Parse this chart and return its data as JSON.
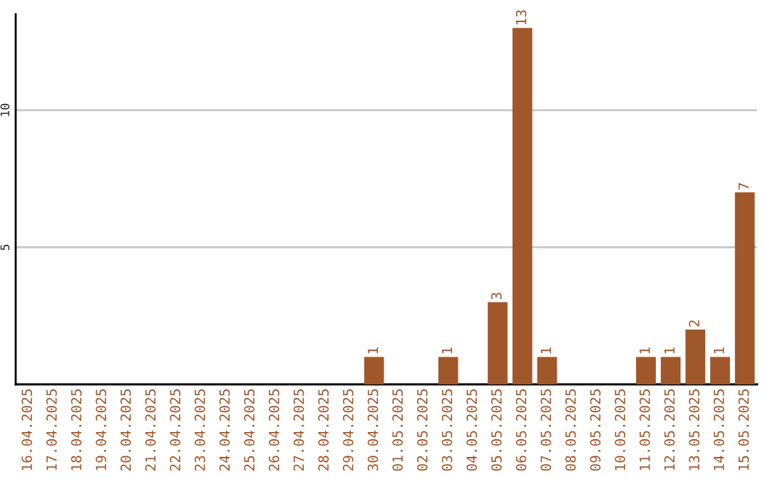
{
  "chart_data": {
    "type": "bar",
    "categories": [
      "16.04.2025",
      "17.04.2025",
      "18.04.2025",
      "19.04.2025",
      "20.04.2025",
      "21.04.2025",
      "22.04.2025",
      "23.04.2025",
      "24.04.2025",
      "25.04.2025",
      "26.04.2025",
      "27.04.2025",
      "28.04.2025",
      "29.04.2025",
      "30.04.2025",
      "01.05.2025",
      "02.05.2025",
      "03.05.2025",
      "04.05.2025",
      "05.05.2025",
      "06.05.2025",
      "07.05.2025",
      "08.05.2025",
      "09.05.2025",
      "10.05.2025",
      "11.05.2025",
      "12.05.2025",
      "13.05.2025",
      "14.05.2025",
      "15.05.2025"
    ],
    "values": [
      0,
      0,
      0,
      0,
      0,
      0,
      0,
      0,
      0,
      0,
      0,
      0,
      0,
      0,
      1,
      0,
      0,
      1,
      0,
      3,
      13,
      1,
      0,
      0,
      0,
      1,
      1,
      2,
      1,
      7
    ],
    "value_labels": [
      null,
      null,
      null,
      null,
      null,
      null,
      null,
      null,
      null,
      null,
      null,
      null,
      null,
      null,
      "1",
      null,
      null,
      "1",
      null,
      "3",
      "13",
      "1",
      null,
      null,
      null,
      "1",
      "1",
      "2",
      "1",
      "7"
    ],
    "color": "#a0572a",
    "ylim": [
      0,
      13.5
    ],
    "yticks": [
      5,
      10
    ],
    "grid": "y"
  }
}
